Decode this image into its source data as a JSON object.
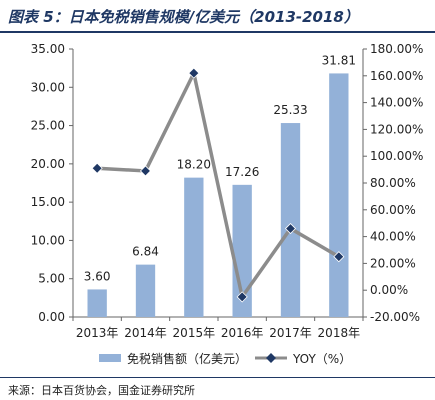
{
  "title": "图表 5：日本免税销售规模/亿美元（2013-2018）",
  "source": "来源：日本百货协会，国金证券研究所",
  "chart_data": {
    "type": "bar",
    "categories": [
      "2013年",
      "2014年",
      "2015年",
      "2016年",
      "2017年",
      "2018年"
    ],
    "series": [
      {
        "name": "免税销售额（亿美元）",
        "type": "bar",
        "axis": "left",
        "color": "#93b1d8",
        "values": [
          3.6,
          6.84,
          18.2,
          17.26,
          25.33,
          31.81
        ],
        "labels": [
          "3.60",
          "6.84",
          "18.20",
          "17.26",
          "25.33",
          "31.81"
        ]
      },
      {
        "name": "YOY（%）",
        "type": "line",
        "axis": "right",
        "color": "#8c8c8c",
        "marker_color": "#1f3864",
        "values": [
          91,
          89,
          162,
          -5,
          46,
          25
        ]
      }
    ],
    "y_left": {
      "ylim": [
        0,
        35
      ],
      "ticks": [
        0,
        5,
        10,
        15,
        20,
        25,
        30,
        35
      ],
      "tick_labels": [
        "0.00",
        "5.00",
        "10.00",
        "15.00",
        "20.00",
        "25.00",
        "30.00",
        "35.00"
      ]
    },
    "y_right": {
      "ylim": [
        -20,
        180
      ],
      "ticks": [
        -20,
        0,
        20,
        40,
        60,
        80,
        100,
        120,
        140,
        160,
        180
      ],
      "tick_labels": [
        "-20.00%",
        "0.00%",
        "20.00%",
        "40.00%",
        "60.00%",
        "80.00%",
        "100.00%",
        "120.00%",
        "140.00%",
        "160.00%",
        "180.00%"
      ]
    },
    "grid": false,
    "legend_position": "bottom"
  }
}
